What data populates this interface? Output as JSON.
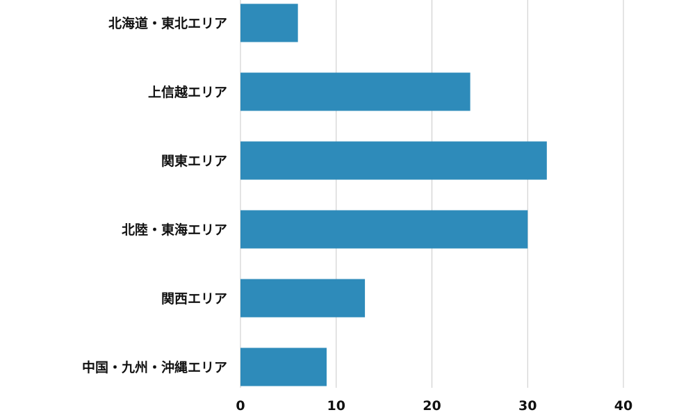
{
  "chart_data": {
    "type": "bar",
    "orientation": "horizontal",
    "categories": [
      "北海道・東北エリア",
      "上信越エリア",
      "関東エリア",
      "北陸・東海エリア",
      "関西エリア",
      "中国・九州・沖縄エリア"
    ],
    "values": [
      6,
      24,
      32,
      30,
      13,
      9
    ],
    "xlim": [
      0,
      40
    ],
    "xticks": [
      0,
      10,
      20,
      30,
      40
    ],
    "grid": true,
    "legend": "none",
    "bar_color": "#2e8bba",
    "grid_color": "#c8c8c8",
    "text_color": "#111111"
  }
}
